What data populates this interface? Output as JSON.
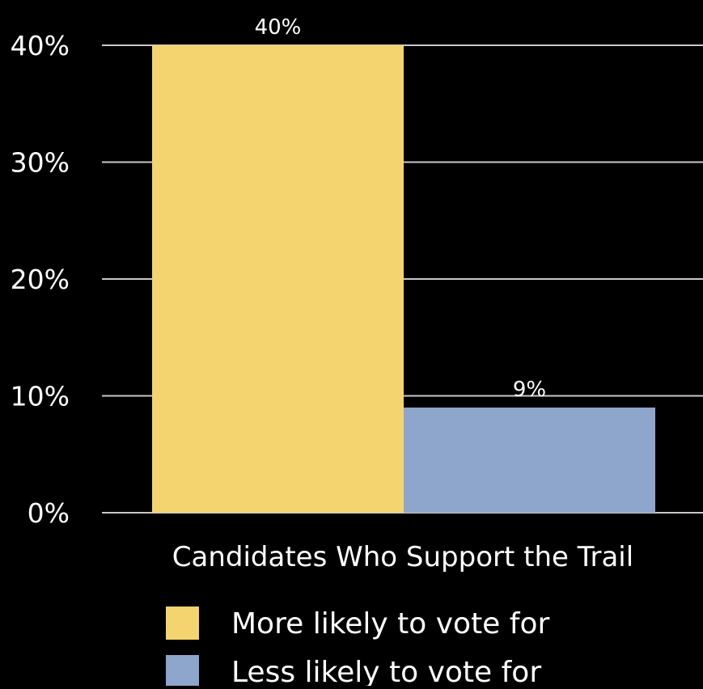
{
  "chart_data": {
    "type": "bar",
    "categories": [
      "Candidates Who Support the Trail"
    ],
    "xlabel": "Candidates Who Support the Trail",
    "ylabel": "",
    "ylim": [
      0,
      40
    ],
    "yticks": [
      0,
      10,
      20,
      30,
      40
    ],
    "ytick_labels": [
      "0%",
      "10%",
      "20%",
      "30%",
      "40%"
    ],
    "grid": true,
    "legend_position": "bottom-left",
    "series": [
      {
        "name": "More likely to vote for",
        "values": [
          40
        ],
        "value_labels": [
          "40%"
        ],
        "color": "#f4d46e"
      },
      {
        "name": "Less likely to vote for",
        "values": [
          9
        ],
        "value_labels": [
          "9%"
        ],
        "color": "#8ea5cc"
      }
    ]
  },
  "colors": {
    "background": "#000000",
    "gridline": "#c8c8c8",
    "text": "#ffffff"
  }
}
